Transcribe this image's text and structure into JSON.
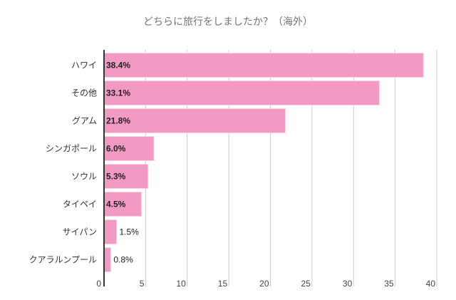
{
  "chart_data": {
    "type": "bar",
    "orientation": "horizontal",
    "title": "どちらに旅行をしましたか？（海外）",
    "categories": [
      "ハワイ",
      "その他",
      "グアム",
      "シンガポール",
      "ソウル",
      "タイペイ",
      "サイパン",
      "クアラルンプール"
    ],
    "values": [
      38.4,
      33.1,
      21.8,
      6.0,
      5.3,
      4.5,
      1.5,
      0.8
    ],
    "data_labels": [
      "38.4%",
      "33.1%",
      "21.8%",
      "6.0%",
      "5.3%",
      "4.5%",
      "1.5%",
      "0.8%"
    ],
    "xticks": [
      "0",
      "5",
      "10",
      "15",
      "20",
      "25",
      "30",
      "35",
      "40"
    ],
    "xlim": [
      0,
      40
    ],
    "xlabel": "",
    "ylabel": "",
    "grid": true,
    "bar_color": "#f29ac4"
  }
}
